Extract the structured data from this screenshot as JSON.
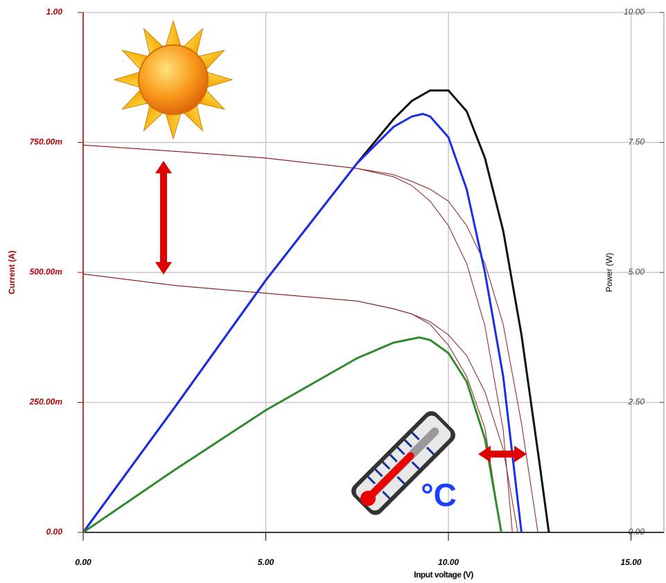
{
  "chart_data": {
    "type": "line",
    "x_label": "Input voltage (V)",
    "y_label": "Current (A)",
    "y2_label": "Power (W)",
    "annotations": [
      "°C"
    ],
    "xlim": [
      0,
      15.9
    ],
    "ylim": [
      0,
      1
    ],
    "y2lim": [
      0,
      10
    ],
    "xticks": [
      {
        "value": 0,
        "label": "0.00"
      },
      {
        "value": 5,
        "label": "5.00"
      },
      {
        "value": 10,
        "label": "10.00"
      },
      {
        "value": 15,
        "label": "15.00"
      }
    ],
    "yticks": [
      {
        "value": 0,
        "label": "0.00"
      },
      {
        "value": 0.25,
        "label": "250.00m"
      },
      {
        "value": 0.5,
        "label": "500.00m"
      },
      {
        "value": 0.75,
        "label": "750.00m"
      },
      {
        "value": 1,
        "label": "1.00"
      }
    ],
    "y2ticks": [
      {
        "value": 0,
        "label": "0.00"
      },
      {
        "value": 2.5,
        "label": "2.50"
      },
      {
        "value": 5,
        "label": "5.00"
      },
      {
        "value": 7.5,
        "label": "7.50"
      },
      {
        "value": 10,
        "label": "10.00"
      }
    ],
    "grid": true,
    "series": [
      {
        "color": "#8b1a1a",
        "x": [
          0,
          2.5,
          5,
          7.5,
          8.5,
          9,
          9.5,
          10,
          10.5,
          11,
          11.5,
          11.75
        ],
        "values": [
          0.745,
          0.733,
          0.72,
          0.7,
          0.684,
          0.667,
          0.637,
          0.59,
          0.517,
          0.397,
          0.197,
          0
        ]
      },
      {
        "color": "#8b1a1a",
        "x": [
          0,
          2.5,
          5,
          7.5,
          8.5,
          9,
          9.5,
          10,
          10.5,
          11,
          11.5,
          12,
          12.45
        ],
        "values": [
          0.745,
          0.733,
          0.72,
          0.7,
          0.688,
          0.675,
          0.66,
          0.637,
          0.59,
          0.517,
          0.4,
          0.21,
          0
        ]
      },
      {
        "color": "#8b1a1a",
        "x": [
          0,
          2.5,
          5,
          7.5,
          8.5,
          9,
          9.5,
          10,
          10.5,
          11,
          11.45
        ],
        "values": [
          0.497,
          0.475,
          0.46,
          0.445,
          0.43,
          0.42,
          0.4,
          0.36,
          0.3,
          0.2,
          0
        ]
      },
      {
        "color": "#8b1a1a",
        "x": [
          0,
          2.5,
          5,
          7.5,
          8.5,
          9,
          9.5,
          10,
          10.5,
          11,
          11.5,
          11.9
        ],
        "values": [
          0.497,
          0.475,
          0.46,
          0.445,
          0.43,
          0.42,
          0.405,
          0.38,
          0.34,
          0.27,
          0.16,
          0
        ]
      },
      {
        "color": "#111111",
        "axis": "y2",
        "x": [
          0,
          2.5,
          5,
          7.5,
          8.5,
          9,
          9.5,
          10,
          10.5,
          11,
          11.5,
          12,
          12.5,
          12.75
        ],
        "values": [
          0,
          2.4,
          4.85,
          7.1,
          7.95,
          8.3,
          8.5,
          8.5,
          8.1,
          7.2,
          5.8,
          3.8,
          1.3,
          0
        ]
      },
      {
        "color": "#1a2ee8",
        "axis": "y2",
        "x": [
          0,
          2.5,
          5,
          7.5,
          8.5,
          9,
          9.3,
          9.5,
          10,
          10.5,
          11,
          11.5,
          12
        ],
        "values": [
          0,
          2.4,
          4.85,
          7.1,
          7.8,
          8.0,
          8.05,
          8.0,
          7.6,
          6.6,
          5.0,
          3.0,
          0
        ]
      },
      {
        "color": "#2e8b2e",
        "axis": "y2",
        "x": [
          0,
          2.5,
          5,
          7.5,
          8.5,
          9.2,
          9.5,
          10,
          10.5,
          11,
          11.45
        ],
        "values": [
          0,
          1.2,
          2.35,
          3.35,
          3.65,
          3.75,
          3.7,
          3.45,
          2.9,
          1.8,
          0
        ]
      }
    ]
  }
}
